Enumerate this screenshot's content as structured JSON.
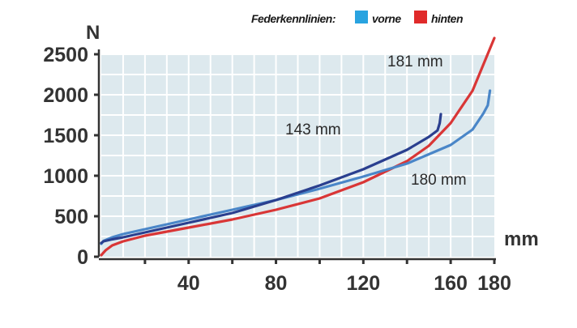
{
  "chart_data": {
    "type": "line",
    "title": "",
    "xlabel": "mm",
    "ylabel": "N",
    "xlim": [
      0,
      180
    ],
    "ylim": [
      0,
      2500
    ],
    "x_ticks": [
      40,
      80,
      120,
      160,
      180
    ],
    "y_ticks": [
      0,
      500,
      1000,
      1500,
      2000,
      2500
    ],
    "grid": true,
    "legend": {
      "title": "Federkennlinien:",
      "placement": "top-right",
      "entries": [
        {
          "label": "vorne",
          "color": "#29a3e0"
        },
        {
          "label": "hinten",
          "color": "#e02a2a"
        }
      ]
    },
    "series": [
      {
        "name": "vorne",
        "label": "143 mm",
        "color": "#2a3f8f",
        "x": [
          0,
          1,
          5,
          10,
          20,
          40,
          60,
          80,
          100,
          120,
          140,
          150,
          154,
          155,
          155.5
        ],
        "y": [
          170,
          190,
          215,
          240,
          300,
          420,
          540,
          700,
          880,
          1080,
          1320,
          1480,
          1560,
          1650,
          1760
        ]
      },
      {
        "name": "vorne",
        "label": "180 mm",
        "color": "#4a86c8",
        "x": [
          0,
          1,
          5,
          10,
          20,
          40,
          60,
          80,
          100,
          120,
          140,
          160,
          170,
          175,
          177,
          178
        ],
        "y": [
          160,
          195,
          240,
          280,
          340,
          460,
          580,
          700,
          840,
          990,
          1150,
          1380,
          1570,
          1770,
          1870,
          2050
        ]
      },
      {
        "name": "hinten",
        "label": "181 mm",
        "color": "#d93636",
        "x": [
          0,
          2,
          5,
          10,
          20,
          40,
          60,
          80,
          100,
          120,
          140,
          150,
          160,
          170,
          180
        ],
        "y": [
          20,
          80,
          140,
          190,
          260,
          360,
          460,
          580,
          720,
          920,
          1180,
          1370,
          1650,
          2050,
          2700
        ]
      }
    ]
  }
}
